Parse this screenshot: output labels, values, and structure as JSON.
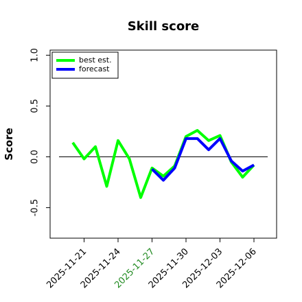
{
  "chart_data": {
    "type": "line",
    "title": "Skill score",
    "y_label": "Score",
    "x": [
      "2025-11-20",
      "2025-11-21",
      "2025-11-22",
      "2025-11-23",
      "2025-11-24",
      "2025-11-25",
      "2025-11-26",
      "2025-11-27",
      "2025-11-28",
      "2025-11-29",
      "2025-11-30",
      "2025-12-01",
      "2025-12-02",
      "2025-12-03",
      "2025-12-04",
      "2025-12-05",
      "2025-12-06"
    ],
    "series": [
      {
        "name": "best est.",
        "color": "#00ff00",
        "values": [
          0.14,
          -0.02,
          0.1,
          -0.29,
          0.16,
          -0.02,
          -0.4,
          -0.11,
          -0.19,
          -0.09,
          0.2,
          0.26,
          0.16,
          0.21,
          -0.05,
          -0.2,
          -0.08
        ]
      },
      {
        "name": "forecast",
        "color": "#0000ff",
        "values": [
          null,
          null,
          null,
          null,
          null,
          null,
          null,
          -0.12,
          -0.23,
          -0.11,
          0.18,
          0.18,
          0.07,
          0.18,
          -0.04,
          -0.14,
          -0.08
        ]
      }
    ],
    "xlim": [
      "2025-11-18",
      "2025-12-08"
    ],
    "xticks": [
      "2025-11-21",
      "2025-11-24",
      "2025-11-27",
      "2025-11-30",
      "2025-12-03",
      "2025-12-06"
    ],
    "xtick_colors": [
      "#000000",
      "#000000",
      "#228b22",
      "#000000",
      "#000000",
      "#000000"
    ],
    "ylim": [
      -0.8,
      1.05
    ],
    "yticks": [
      -0.5,
      {
        "value": 0,
        "label": "0.0"
      },
      0.5,
      {
        "value": 1,
        "label": "1.0"
      }
    ],
    "hline": 0,
    "legend": "upper left"
  }
}
